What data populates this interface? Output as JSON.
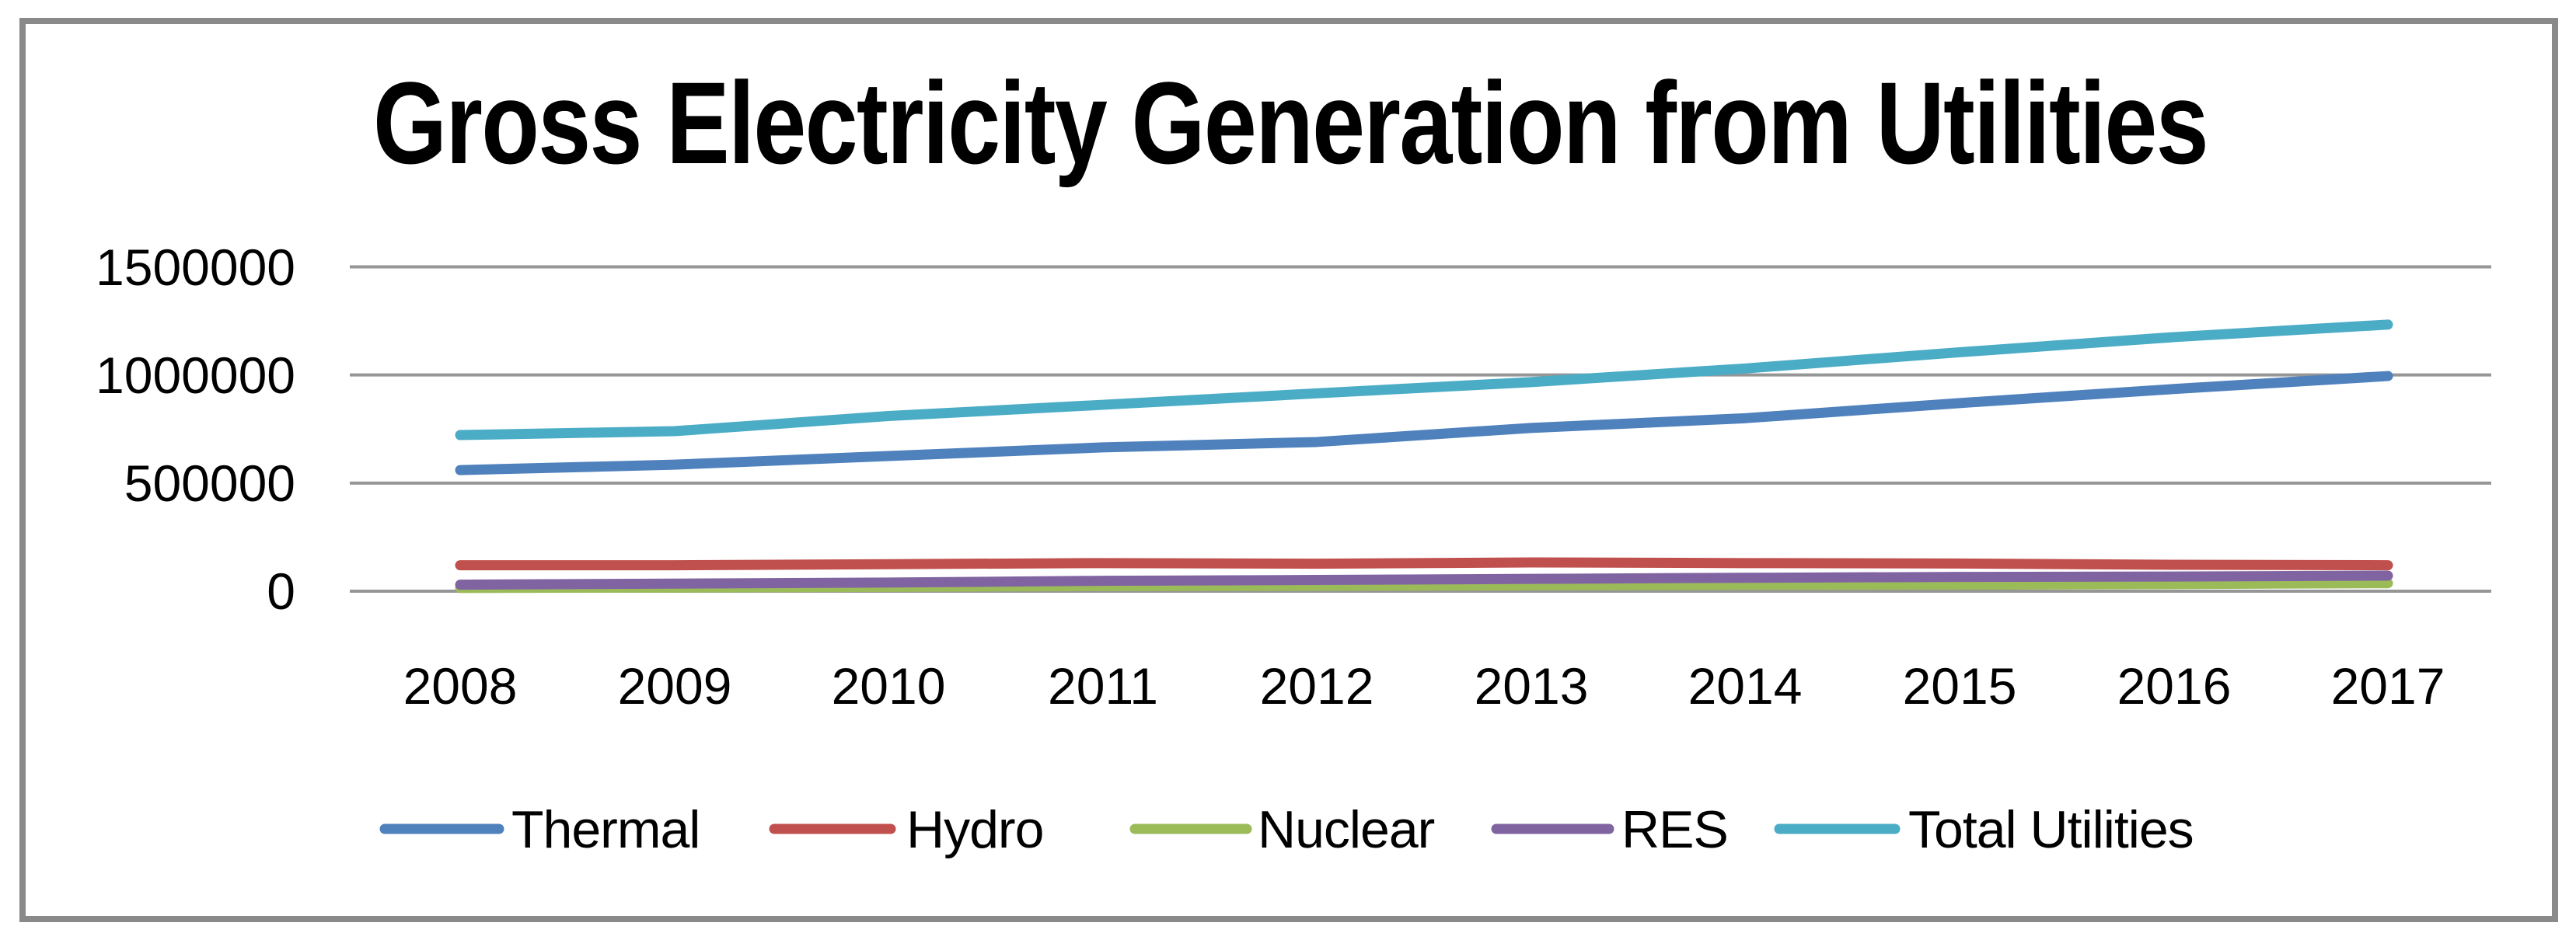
{
  "chart_data": {
    "type": "line",
    "title": "Gross Electricity Generation from Utilities",
    "xlabel": "",
    "ylabel": "",
    "categories": [
      "2008",
      "2009",
      "2010",
      "2011",
      "2012",
      "2013",
      "2014",
      "2015",
      "2016",
      "2017"
    ],
    "series": [
      {
        "name": "Thermal",
        "color": "#4F81BD",
        "values": [
          560000,
          585000,
          625000,
          665000,
          690000,
          755000,
          800000,
          870000,
          935000,
          995000
        ]
      },
      {
        "name": "Hydro",
        "color": "#C0504D",
        "values": [
          120000,
          120000,
          125000,
          130000,
          127000,
          133000,
          130000,
          128000,
          122000,
          120000
        ]
      },
      {
        "name": "Nuclear",
        "color": "#9BBB59",
        "values": [
          15000,
          17000,
          20000,
          24000,
          25000,
          27000,
          29000,
          30000,
          33000,
          37000
        ]
      },
      {
        "name": "RES",
        "color": "#8064A2",
        "values": [
          30000,
          35000,
          40000,
          48000,
          52000,
          57000,
          62000,
          66000,
          68000,
          72000
        ]
      },
      {
        "name": "Total Utilities",
        "color": "#4BACC6",
        "values": [
          722000,
          740000,
          810000,
          862000,
          915000,
          967000,
          1030000,
          1105000,
          1175000,
          1233000
        ]
      }
    ],
    "ylim": [
      0,
      1500000
    ],
    "yticks": [
      0,
      500000,
      1000000,
      1500000
    ],
    "ytick_labels": [
      "0",
      "500000",
      "1000000",
      "1500000"
    ],
    "grid": "horizontal",
    "legend_position": "bottom"
  }
}
